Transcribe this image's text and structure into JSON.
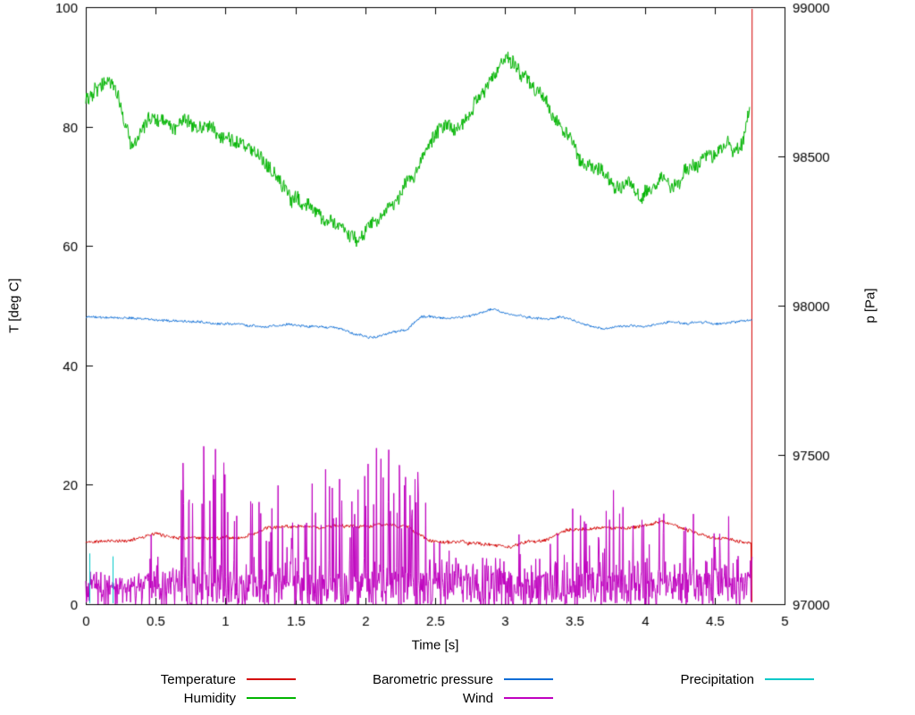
{
  "chart_data": {
    "type": "line",
    "title": "",
    "xlabel": "Time [s]",
    "ylabel_left": "T [deg C]",
    "ylabel_right": "p [Pa]",
    "xlim": [
      0,
      5
    ],
    "ylim_left": [
      0,
      100
    ],
    "ylim_right": [
      97000,
      99000
    ],
    "grid": false,
    "legend_position": "bottom",
    "x_ticks": [
      0,
      0.5,
      1,
      1.5,
      2,
      2.5,
      3,
      3.5,
      4,
      4.5,
      5
    ],
    "x_tick_labels": [
      "0",
      "0.5",
      "1",
      "1.5",
      "2",
      "2.5",
      "3",
      "3.5",
      "4",
      "4.5",
      "5"
    ],
    "y_ticks_left": [
      0,
      20,
      40,
      60,
      80,
      100
    ],
    "y_tick_labels_left": [
      "0",
      "20",
      "40",
      "60",
      "80",
      "100"
    ],
    "y_ticks_right": [
      97000,
      97500,
      98000,
      98500,
      99000
    ],
    "y_tick_labels_right": [
      "97000",
      "97500",
      "98000",
      "98500",
      "99000"
    ],
    "seed": 42,
    "series": [
      {
        "name": "Temperature",
        "color": "#d40000",
        "axis": "left",
        "style": "noisy-line",
        "noise": 0.25,
        "samples": 950,
        "anchors": [
          [
            0,
            10.3
          ],
          [
            0.1,
            10.7
          ],
          [
            0.2,
            10.5
          ],
          [
            0.3,
            10.6
          ],
          [
            0.4,
            11.3
          ],
          [
            0.5,
            11.7
          ],
          [
            0.6,
            11.4
          ],
          [
            0.7,
            11.1
          ],
          [
            0.8,
            11.0
          ],
          [
            0.9,
            11.1
          ],
          [
            1.0,
            11.2
          ],
          [
            1.1,
            11.0
          ],
          [
            1.2,
            11.8
          ],
          [
            1.3,
            12.7
          ],
          [
            1.4,
            12.9
          ],
          [
            1.5,
            13.0
          ],
          [
            1.6,
            12.8
          ],
          [
            1.7,
            12.9
          ],
          [
            1.8,
            13.1
          ],
          [
            1.9,
            13.2
          ],
          [
            2.0,
            13.0
          ],
          [
            2.1,
            13.4
          ],
          [
            2.2,
            13.2
          ],
          [
            2.3,
            13.0
          ],
          [
            2.35,
            12.2
          ],
          [
            2.45,
            10.6
          ],
          [
            2.55,
            10.4
          ],
          [
            2.7,
            10.3
          ],
          [
            2.85,
            10.1
          ],
          [
            2.95,
            9.9
          ],
          [
            3.05,
            9.6
          ],
          [
            3.15,
            10.4
          ],
          [
            3.3,
            10.9
          ],
          [
            3.45,
            12.4
          ],
          [
            3.6,
            12.6
          ],
          [
            3.7,
            12.9
          ],
          [
            3.8,
            12.7
          ],
          [
            3.9,
            12.9
          ],
          [
            4.0,
            13.1
          ],
          [
            4.1,
            13.9
          ],
          [
            4.2,
            13.3
          ],
          [
            4.3,
            12.4
          ],
          [
            4.4,
            11.7
          ],
          [
            4.5,
            11.2
          ],
          [
            4.6,
            10.9
          ],
          [
            4.7,
            10.5
          ],
          [
            4.76,
            10.2
          ]
        ],
        "tail": [
          [
            4.765,
            0.3
          ],
          [
            4.768,
            99.7
          ]
        ]
      },
      {
        "name": "Humidity",
        "color": "#00b400",
        "axis": "left",
        "style": "noisy-line",
        "noise": 1.1,
        "samples": 1100,
        "anchors": [
          [
            0,
            84.5
          ],
          [
            0.07,
            86.3
          ],
          [
            0.15,
            87.6
          ],
          [
            0.22,
            85.5
          ],
          [
            0.28,
            81.5
          ],
          [
            0.33,
            76.5
          ],
          [
            0.38,
            79.0
          ],
          [
            0.45,
            80.5
          ],
          [
            0.55,
            81.0
          ],
          [
            0.65,
            80.2
          ],
          [
            0.75,
            80.8
          ],
          [
            0.85,
            80.2
          ],
          [
            0.95,
            79.0
          ],
          [
            1.05,
            77.8
          ],
          [
            1.15,
            76.5
          ],
          [
            1.25,
            75.0
          ],
          [
            1.35,
            72.0
          ],
          [
            1.45,
            69.0
          ],
          [
            1.55,
            67.0
          ],
          [
            1.65,
            65.5
          ],
          [
            1.75,
            64.0
          ],
          [
            1.85,
            62.5
          ],
          [
            1.95,
            60.5
          ],
          [
            2.0,
            62.5
          ],
          [
            2.1,
            64.5
          ],
          [
            2.2,
            67.0
          ],
          [
            2.3,
            70.5
          ],
          [
            2.4,
            74.5
          ],
          [
            2.5,
            79.0
          ],
          [
            2.57,
            80.5
          ],
          [
            2.63,
            79.0
          ],
          [
            2.72,
            81.5
          ],
          [
            2.82,
            85.0
          ],
          [
            2.92,
            88.5
          ],
          [
            3.0,
            91.5
          ],
          [
            3.07,
            90.5
          ],
          [
            3.15,
            88.0
          ],
          [
            3.25,
            85.5
          ],
          [
            3.35,
            82.0
          ],
          [
            3.45,
            78.5
          ],
          [
            3.52,
            75.0
          ],
          [
            3.6,
            73.0
          ],
          [
            3.68,
            72.5
          ],
          [
            3.75,
            71.0
          ],
          [
            3.82,
            69.5
          ],
          [
            3.9,
            70.5
          ],
          [
            3.97,
            68.0
          ],
          [
            4.05,
            70.0
          ],
          [
            4.12,
            72.0
          ],
          [
            4.18,
            70.0
          ],
          [
            4.25,
            70.5
          ],
          [
            4.32,
            73.5
          ],
          [
            4.42,
            74.5
          ],
          [
            4.52,
            75.5
          ],
          [
            4.6,
            77.0
          ],
          [
            4.66,
            75.8
          ],
          [
            4.72,
            78.5
          ],
          [
            4.75,
            83.5
          ]
        ],
        "tail": []
      },
      {
        "name": "Barometric pressure",
        "color": "#0a6cd6",
        "axis": "right",
        "style": "noisy-line",
        "noise": 3.5,
        "samples": 950,
        "anchors": [
          [
            0,
            97962
          ],
          [
            0.3,
            97958
          ],
          [
            0.6,
            97950
          ],
          [
            0.9,
            97941
          ],
          [
            1.1,
            97938
          ],
          [
            1.3,
            97929
          ],
          [
            1.45,
            97938
          ],
          [
            1.6,
            97930
          ],
          [
            1.8,
            97924
          ],
          [
            1.95,
            97901
          ],
          [
            2.05,
            97893
          ],
          [
            2.15,
            97906
          ],
          [
            2.3,
            97921
          ],
          [
            2.4,
            97964
          ],
          [
            2.5,
            97959
          ],
          [
            2.6,
            97957
          ],
          [
            2.7,
            97962
          ],
          [
            2.8,
            97971
          ],
          [
            2.9,
            97988
          ],
          [
            3.0,
            97976
          ],
          [
            3.1,
            97967
          ],
          [
            3.2,
            97959
          ],
          [
            3.3,
            97954
          ],
          [
            3.4,
            97961
          ],
          [
            3.5,
            97949
          ],
          [
            3.6,
            97934
          ],
          [
            3.7,
            97924
          ],
          [
            3.8,
            97930
          ],
          [
            3.9,
            97934
          ],
          [
            4.0,
            97929
          ],
          [
            4.1,
            97940
          ],
          [
            4.2,
            97946
          ],
          [
            4.3,
            97941
          ],
          [
            4.4,
            97946
          ],
          [
            4.5,
            97939
          ],
          [
            4.6,
            97942
          ],
          [
            4.7,
            97950
          ],
          [
            4.77,
            97953
          ]
        ],
        "tail": []
      },
      {
        "name": "Wind",
        "color": "#bf00bf",
        "axis": "left",
        "style": "spiky",
        "baseline": 3,
        "spike_prob": 0.12,
        "dt": 0.004,
        "xmax": 4.77,
        "envelope": [
          [
            0,
            4
          ],
          [
            0.42,
            4
          ],
          [
            0.5,
            18
          ],
          [
            0.62,
            23
          ],
          [
            0.75,
            28
          ],
          [
            0.88,
            34
          ],
          [
            1.0,
            26
          ],
          [
            1.1,
            20
          ],
          [
            1.2,
            18
          ],
          [
            1.35,
            21
          ],
          [
            1.5,
            17
          ],
          [
            1.62,
            23
          ],
          [
            1.72,
            26
          ],
          [
            1.82,
            22
          ],
          [
            1.92,
            18
          ],
          [
            2.0,
            30
          ],
          [
            2.1,
            29
          ],
          [
            2.2,
            26
          ],
          [
            2.3,
            22
          ],
          [
            2.4,
            28
          ],
          [
            2.5,
            13
          ],
          [
            2.6,
            9
          ],
          [
            2.75,
            8
          ],
          [
            2.9,
            10
          ],
          [
            3.0,
            8
          ],
          [
            3.1,
            13
          ],
          [
            3.2,
            10
          ],
          [
            3.3,
            9
          ],
          [
            3.42,
            15
          ],
          [
            3.5,
            25
          ],
          [
            3.6,
            18
          ],
          [
            3.7,
            16
          ],
          [
            3.8,
            21
          ],
          [
            3.9,
            22
          ],
          [
            4.0,
            18
          ],
          [
            4.1,
            16
          ],
          [
            4.2,
            21
          ],
          [
            4.3,
            14
          ],
          [
            4.4,
            17
          ],
          [
            4.5,
            12
          ],
          [
            4.6,
            19
          ],
          [
            4.7,
            14
          ],
          [
            4.77,
            10
          ]
        ]
      },
      {
        "name": "Precipitation",
        "color": "#00c8c8",
        "axis": "left",
        "style": "impulses",
        "impulses": [
          [
            0.025,
            8.5
          ],
          [
            0.19,
            8.0
          ]
        ]
      }
    ],
    "legend": {
      "rows": [
        [
          "Temperature",
          "Barometric pressure",
          "Precipitation"
        ],
        [
          "Humidity",
          "Wind",
          ""
        ]
      ]
    }
  }
}
